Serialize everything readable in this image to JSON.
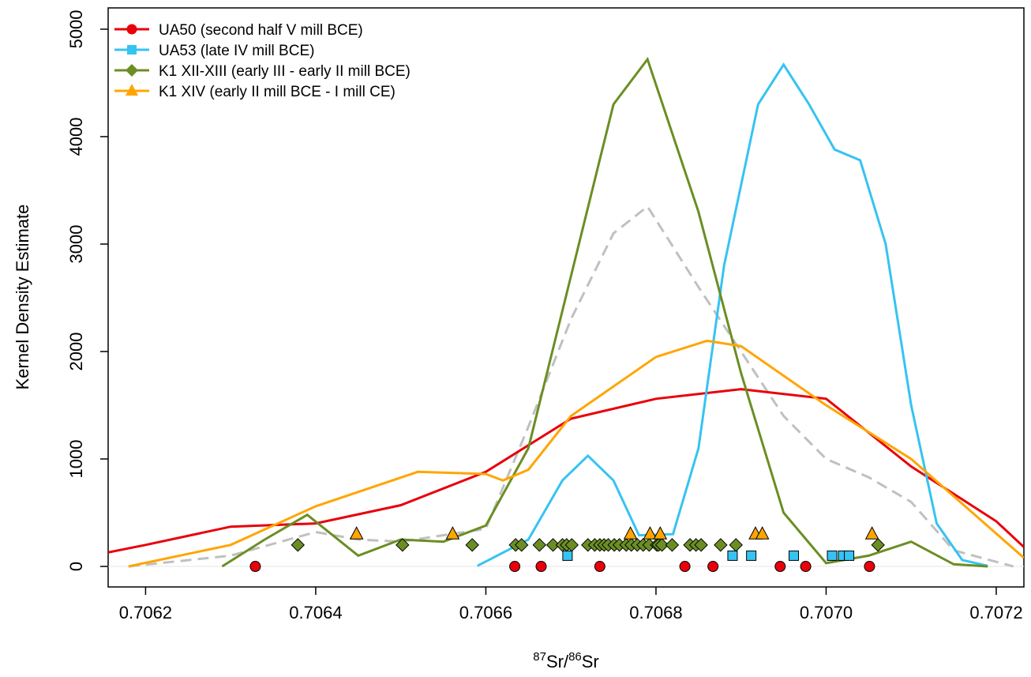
{
  "chart_data": {
    "type": "line",
    "ylabel": "Kernel Density Estimate",
    "xlabel_parts": [
      "87",
      "Sr/",
      "86",
      "Sr"
    ],
    "xlim": [
      0.706156,
      0.7072325
    ],
    "ylim": [
      -191,
      5198
    ],
    "xticks": [
      0.7062,
      0.7064,
      0.7066,
      0.7068,
      0.707,
      0.7072
    ],
    "xtick_labels": [
      "0.7062",
      "0.7064",
      "0.7066",
      "0.7068",
      "0.7070",
      "0.7072"
    ],
    "yticks": [
      0,
      1000,
      2000,
      3000,
      4000,
      5000
    ],
    "legend": "top-left",
    "series": [
      {
        "name": "UA50 (second half V mill BCE)",
        "color": "#e8000b",
        "marker": "circle",
        "x": [
          0.706156,
          0.7062,
          0.7063,
          0.7064,
          0.7065,
          0.7066,
          0.7067,
          0.7068,
          0.7069,
          0.707,
          0.7071,
          0.7072,
          0.7072325
        ],
        "values": [
          130,
          200,
          370,
          400,
          570,
          880,
          1375,
          1560,
          1650,
          1560,
          930,
          420,
          180
        ],
        "points": {
          "x": [
            0.706329,
            0.706634,
            0.706665,
            0.706734,
            0.706834,
            0.706867,
            0.706946,
            0.706976,
            0.707051
          ],
          "y": [
            0,
            0,
            0,
            0,
            0,
            0,
            0,
            0,
            0
          ]
        }
      },
      {
        "name": "UA53 (late IV mill BCE)",
        "color": "#36c3f2",
        "marker": "square",
        "x": [
          0.70659,
          0.70665,
          0.70669,
          0.70672,
          0.70675,
          0.70678,
          0.70682,
          0.70685,
          0.70688,
          0.70692,
          0.70695,
          0.70698,
          0.70701,
          0.70704,
          0.70707,
          0.7071,
          0.70713,
          0.70716,
          0.70719
        ],
        "values": [
          5,
          250,
          800,
          1030,
          800,
          290,
          300,
          1100,
          2800,
          4300,
          4670,
          4300,
          3880,
          3780,
          3000,
          1500,
          400,
          60,
          5
        ],
        "points": {
          "x": [
            0.706696,
            0.70689,
            0.706912,
            0.706962,
            0.707007,
            0.70702,
            0.707027
          ],
          "y": [
            100,
            100,
            100,
            100,
            100,
            100,
            100
          ]
        }
      },
      {
        "name": "K1 XII-XIII (early III - early II mill BCE)",
        "color": "#6b8e23",
        "marker": "diamond",
        "x": [
          0.70629,
          0.70634,
          0.70639,
          0.70645,
          0.7065,
          0.70655,
          0.7066,
          0.70665,
          0.7067,
          0.70675,
          0.70679,
          0.70685,
          0.7069,
          0.70695,
          0.707,
          0.70705,
          0.7071,
          0.70715,
          0.70719
        ],
        "values": [
          0,
          250,
          480,
          100,
          250,
          230,
          380,
          1100,
          2700,
          4300,
          4720,
          3300,
          1800,
          500,
          30,
          100,
          230,
          20,
          0
        ],
        "points": {
          "x": [
            0.706379,
            0.706502,
            0.706584,
            0.706635,
            0.706642,
            0.706663,
            0.706679,
            0.70669,
            0.706695,
            0.706701,
            0.70672,
            0.706728,
            0.706734,
            0.706739,
            0.706744,
            0.706751,
            0.706757,
            0.706765,
            0.706771,
            0.706778,
            0.706785,
            0.706792,
            0.706801,
            0.706803,
            0.706807,
            0.706819,
            0.70684,
            0.706847,
            0.706853,
            0.706876,
            0.706894,
            0.707061
          ],
          "y": [
            200,
            200,
            200,
            200,
            200,
            200,
            200,
            200,
            200,
            200,
            200,
            200,
            200,
            200,
            200,
            200,
            200,
            200,
            200,
            200,
            200,
            200,
            200,
            200,
            200,
            200,
            200,
            200,
            200,
            200,
            200,
            200
          ]
        }
      },
      {
        "name": "K1 XIV (early II mill BCE - I mill CE)",
        "color": "#ffa500",
        "marker": "triangle",
        "x": [
          0.70618,
          0.7063,
          0.7064,
          0.70652,
          0.7066,
          0.70662,
          0.70665,
          0.7067,
          0.7068,
          0.70686,
          0.7069,
          0.707,
          0.7071,
          0.7072325
        ],
        "values": [
          0,
          200,
          560,
          880,
          860,
          800,
          900,
          1400,
          1950,
          2100,
          2050,
          1500,
          1000,
          80
        ],
        "points": {
          "x": [
            0.706448,
            0.706561,
            0.70677,
            0.706793,
            0.706805,
            0.706917,
            0.706925,
            0.707054
          ],
          "y": [
            300,
            300,
            300,
            300,
            300,
            300,
            300,
            300
          ]
        }
      },
      {
        "color": "#c0c0c0",
        "dashed": true,
        "x": [
          0.70618,
          0.7063,
          0.7064,
          0.70645,
          0.7065,
          0.7066,
          0.70665,
          0.7067,
          0.70675,
          0.70679,
          0.70685,
          0.7069,
          0.70695,
          0.707,
          0.70705,
          0.7071,
          0.70715,
          0.70722
        ],
        "values": [
          0,
          100,
          320,
          250,
          230,
          350,
          1300,
          2300,
          3100,
          3350,
          2600,
          2000,
          1400,
          1000,
          830,
          600,
          150,
          0
        ]
      }
    ]
  }
}
